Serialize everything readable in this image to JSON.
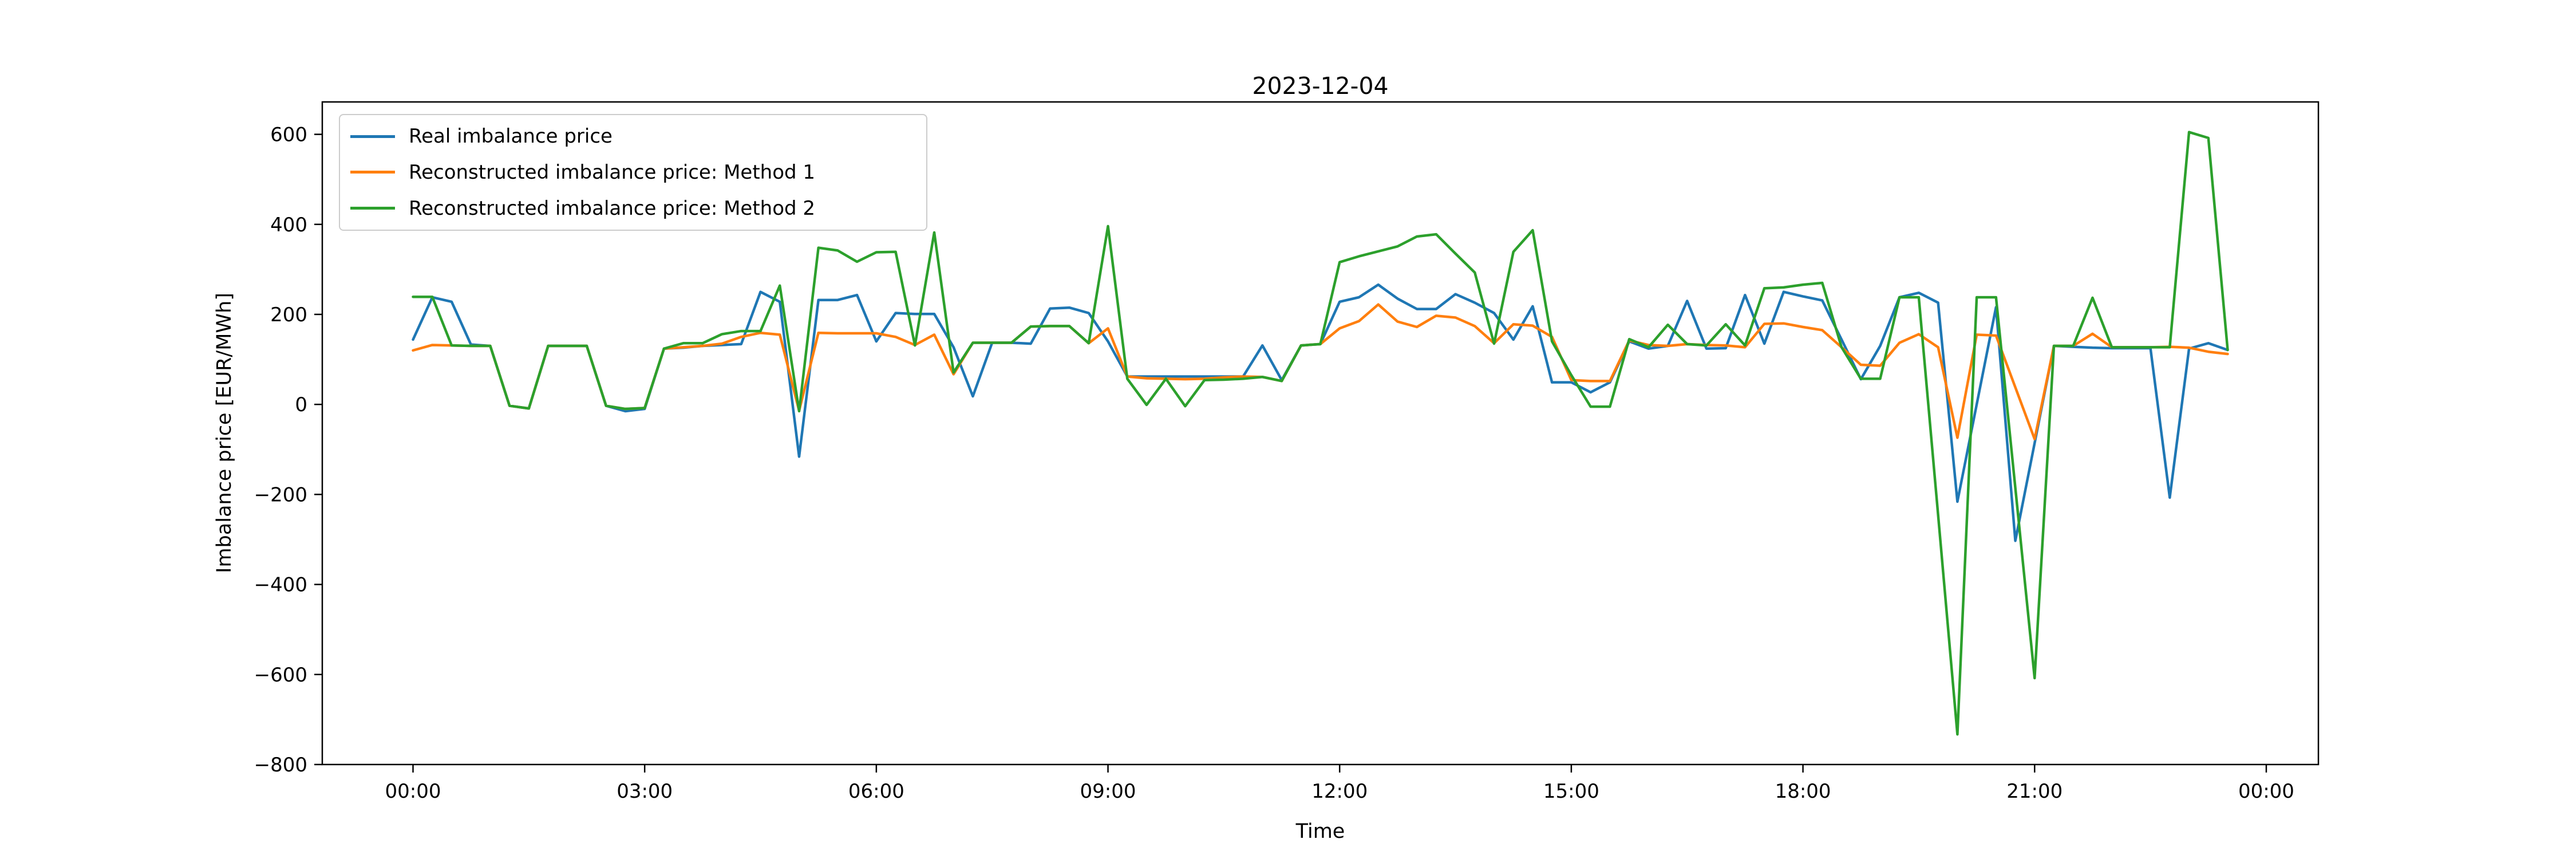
{
  "page": {
    "background": "#ffffff"
  },
  "chart_data": {
    "type": "line",
    "title": "2023-12-04",
    "xlabel": "Time",
    "ylabel": "Imbalance price [EUR/MWh]",
    "grid": false,
    "legend_position": "upper left",
    "x_start_hour": 0,
    "x_step_hours": 0.25,
    "xlim_hours": [
      -1.175,
      24.675
    ],
    "ylim": [
      -800,
      672
    ],
    "xtick_hours": [
      0,
      3,
      6,
      9,
      12,
      15,
      18,
      21,
      24
    ],
    "xticklabels": [
      "00:00",
      "03:00",
      "06:00",
      "09:00",
      "12:00",
      "15:00",
      "18:00",
      "21:00",
      "00:00"
    ],
    "yticks": [
      600,
      400,
      200,
      0,
      -200,
      -400,
      -600,
      -800
    ],
    "yticklabels": [
      "600",
      "400",
      "200",
      "0",
      "−200",
      "−400",
      "−600",
      "−800"
    ],
    "series": [
      {
        "name": "Real imbalance price",
        "color": "#1f77b4",
        "values": [
          144,
          238,
          228,
          133,
          130,
          -3,
          -9,
          130,
          130,
          130,
          -3,
          -15,
          -10,
          124,
          126,
          130,
          132,
          134,
          250,
          228,
          -116,
          232,
          232,
          243,
          140,
          203,
          201,
          201,
          127,
          18,
          137,
          137,
          135,
          213,
          215,
          203,
          140,
          62,
          62,
          62,
          62,
          62,
          62,
          62,
          131,
          54,
          131,
          134,
          228,
          238,
          266,
          235,
          212,
          212,
          245,
          226,
          203,
          144,
          218,
          49,
          49,
          27,
          49,
          140,
          124,
          130,
          230,
          124,
          125,
          243,
          135,
          250,
          240,
          231,
          144,
          56,
          130,
          238,
          248,
          226,
          -216,
          0,
          216,
          -303,
          -86,
          130,
          128,
          126,
          125,
          125,
          125,
          -207,
          124,
          136,
          121
        ]
      },
      {
        "name": "Reconstructed imbalance price: Method 1",
        "color": "#ff7f0e",
        "values": [
          120,
          132,
          131,
          130,
          130,
          -3,
          -9,
          130,
          130,
          130,
          -3,
          -10,
          -8,
          124,
          127,
          130,
          135,
          150,
          159,
          155,
          -14,
          159,
          158,
          158,
          158,
          150,
          132,
          155,
          67,
          137,
          137,
          137,
          173,
          174,
          174,
          136,
          169,
          62,
          58,
          57,
          56,
          57,
          60,
          62,
          61,
          52,
          131,
          134,
          169,
          185,
          222,
          184,
          172,
          197,
          193,
          174,
          136,
          178,
          175,
          150,
          54,
          52,
          52,
          142,
          132,
          130,
          134,
          132,
          131,
          127,
          179,
          180,
          172,
          165,
          127,
          88,
          86,
          137,
          156,
          127,
          -74,
          155,
          153,
          38,
          -77,
          130,
          130,
          157,
          127,
          127,
          127,
          128,
          126,
          117,
          112
        ]
      },
      {
        "name": "Reconstructed imbalance price: Method 2",
        "color": "#2ca02c",
        "values": [
          239,
          239,
          131,
          130,
          130,
          -3,
          -9,
          130,
          130,
          130,
          -3,
          -10,
          -8,
          124,
          136,
          136,
          156,
          163,
          163,
          264,
          -15,
          348,
          342,
          317,
          338,
          339,
          131,
          382,
          71,
          137,
          137,
          137,
          173,
          174,
          174,
          136,
          396,
          57,
          -1,
          57,
          -4,
          54,
          55,
          57,
          61,
          52,
          131,
          134,
          316,
          329,
          340,
          351,
          373,
          378,
          335,
          293,
          135,
          339,
          387,
          140,
          65,
          -5,
          -5,
          145,
          127,
          177,
          134,
          131,
          178,
          131,
          258,
          260,
          266,
          270,
          127,
          57,
          57,
          238,
          238,
          -245,
          -733,
          238,
          238,
          -185,
          -608,
          130,
          130,
          237,
          127,
          127,
          127,
          127,
          605,
          592,
          121
        ]
      }
    ]
  }
}
